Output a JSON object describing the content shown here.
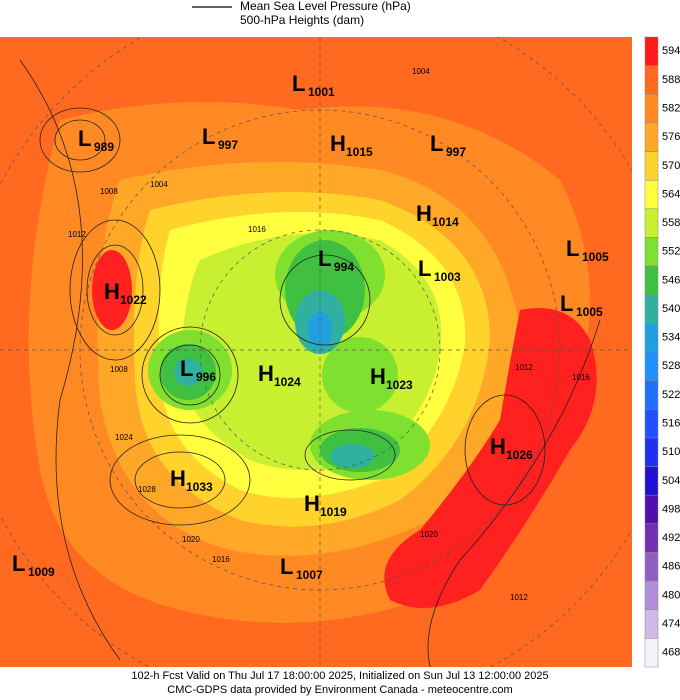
{
  "legend": {
    "mslp": "Mean Sea Level Pressure (hPa)",
    "heights": "500-hPa Heights (dam)"
  },
  "colorbar": {
    "levels": [
      594,
      588,
      582,
      576,
      570,
      564,
      558,
      552,
      546,
      540,
      534,
      528,
      522,
      516,
      510,
      504,
      498,
      492,
      486,
      480,
      474,
      468
    ],
    "colors": [
      "#ff1a1a",
      "#ff6a20",
      "#ff8a24",
      "#ffa828",
      "#ffd22c",
      "#ffff40",
      "#c8f030",
      "#80e030",
      "#40c040",
      "#30b0a0",
      "#20a0e0",
      "#2090ff",
      "#2070ff",
      "#2050ff",
      "#2030f0",
      "#2010d0",
      "#5010b0",
      "#7030b0",
      "#9060c0",
      "#b090d8",
      "#d0b8e8",
      "#f4f4fa"
    ]
  },
  "centers": [
    {
      "type": "L",
      "value": "1001"
    },
    {
      "type": "L",
      "value": "989"
    },
    {
      "type": "L",
      "value": "997"
    },
    {
      "type": "H",
      "value": "1015"
    },
    {
      "type": "L",
      "value": "997"
    },
    {
      "type": "H",
      "value": "1014"
    },
    {
      "type": "L",
      "value": "994"
    },
    {
      "type": "L",
      "value": "1003"
    },
    {
      "type": "L",
      "value": "1005"
    },
    {
      "type": "H",
      "value": "1022"
    },
    {
      "type": "L",
      "value": "1005"
    },
    {
      "type": "L",
      "value": "996"
    },
    {
      "type": "H",
      "value": "1024"
    },
    {
      "type": "H",
      "value": "1023"
    },
    {
      "type": "H",
      "value": "1026"
    },
    {
      "type": "H",
      "value": "1033"
    },
    {
      "type": "H",
      "value": "1019"
    },
    {
      "type": "L",
      "value": "1009"
    },
    {
      "type": "L",
      "value": "1007"
    }
  ],
  "isobar_labels": [
    "1004",
    "1008",
    "1004",
    "1012",
    "1016",
    "1008",
    "1024",
    "1028",
    "1020",
    "1016",
    "1020",
    "1012",
    "1016",
    "1012"
  ],
  "footer": [
    "102-h Fcst Valid on Thu Jul 17 18:00:00 2025, Initialized on Sun Jul 13 12:00:00 2025",
    "CMC-GDPS data provided by Environment Canada - meteocentre.com"
  ]
}
